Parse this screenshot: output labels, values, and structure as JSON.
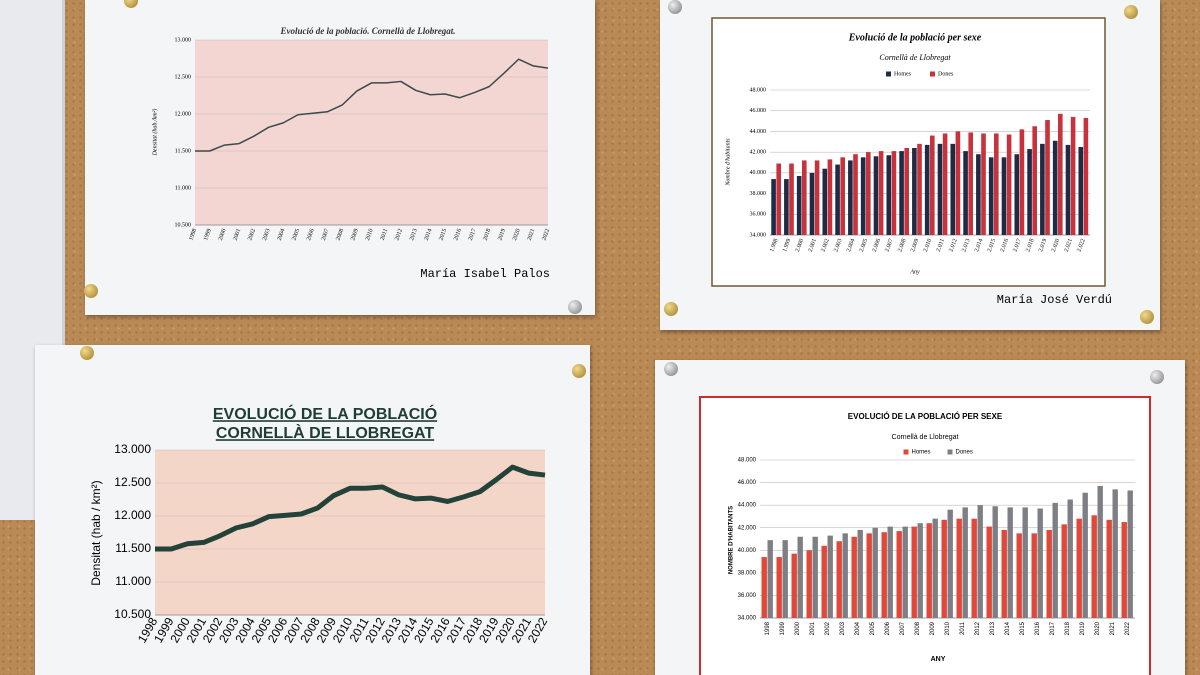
{
  "chart_data": [
    {
      "type": "line",
      "title": "Evolució de la població. Cornellà de Llobregat.",
      "y_label": "Densitat (hab./km²)",
      "caption": "María Isabel Palos",
      "categories": [
        "1998",
        "1999",
        "2000",
        "2001",
        "2002",
        "2003",
        "2004",
        "2005",
        "2006",
        "2007",
        "2008",
        "2009",
        "2010",
        "2011",
        "2012",
        "2013",
        "2014",
        "2015",
        "2016",
        "2017",
        "2018",
        "2019",
        "2020",
        "2021",
        "2022"
      ],
      "values": [
        11500,
        11500,
        11580,
        11600,
        11700,
        11820,
        11880,
        11990,
        12010,
        12030,
        12120,
        12310,
        12420,
        12420,
        12440,
        12320,
        12260,
        12270,
        12220,
        12290,
        12370,
        12550,
        12740,
        12650,
        12620
      ],
      "color": "#3d4a4a",
      "background": "#f3d5d1",
      "ylim": [
        10500,
        13000
      ],
      "yticks": [
        {
          "value": 10500,
          "label": "10.500"
        },
        {
          "value": 11000,
          "label": "11.000"
        },
        {
          "value": 11500,
          "label": "11.500"
        },
        {
          "value": 12000,
          "label": "12.000"
        },
        {
          "value": 12500,
          "label": "12.500"
        },
        {
          "value": 13000,
          "label": "13.000"
        }
      ],
      "grid": true
    },
    {
      "type": "bar",
      "title": "Evolució de la població per sexe",
      "subtitle": "Cornellà de Llobregat",
      "x_label": "Any",
      "y_label": "Nombre d'habitants",
      "caption": "María José Verdú",
      "categories": [
        "1.998",
        "1.999",
        "2.000",
        "2.001",
        "2.002",
        "2.003",
        "2.004",
        "2.005",
        "2.006",
        "2.007",
        "2.008",
        "2.009",
        "2.010",
        "2.011",
        "2.012",
        "2.013",
        "2.014",
        "2.015",
        "2.016",
        "2.017",
        "2.018",
        "2.019",
        "2.020",
        "2.021",
        "2.022"
      ],
      "series": [
        {
          "name": "Homes",
          "color": "#1f2a44",
          "values": [
            39400,
            39400,
            39700,
            40000,
            40400,
            40800,
            41200,
            41500,
            41600,
            41700,
            42100,
            42400,
            42700,
            42800,
            42800,
            42100,
            41800,
            41500,
            41500,
            41800,
            42300,
            42800,
            43100,
            42700,
            42500
          ]
        },
        {
          "name": "Dones",
          "color": "#c8323c",
          "values": [
            40900,
            40900,
            41200,
            41200,
            41300,
            41500,
            41800,
            42000,
            42100,
            42100,
            42400,
            42800,
            43600,
            43800,
            44000,
            43900,
            43800,
            43800,
            43700,
            44200,
            44500,
            45100,
            45700,
            45400,
            45300
          ]
        }
      ],
      "ylim": [
        34000,
        48000
      ],
      "yticks": [
        {
          "value": 34000,
          "label": "34.000"
        },
        {
          "value": 36000,
          "label": "36.000"
        },
        {
          "value": 38000,
          "label": "38.000"
        },
        {
          "value": 40000,
          "label": "40.000"
        },
        {
          "value": 42000,
          "label": "42.000"
        },
        {
          "value": 44000,
          "label": "44.000"
        },
        {
          "value": 46000,
          "label": "46.000"
        },
        {
          "value": 48000,
          "label": "48.000"
        }
      ],
      "grid": true,
      "legend": "top"
    },
    {
      "type": "line",
      "title": [
        "EVOLUCIÓ DE LA POBLACIÓ",
        "CORNELLÀ DE LLOBREGAT"
      ],
      "y_label": "Densitat (hab / km²)",
      "categories": [
        "1998",
        "1999",
        "2000",
        "2001",
        "2002",
        "2003",
        "2004",
        "2005",
        "2006",
        "2007",
        "2008",
        "2009",
        "2010",
        "2011",
        "2012",
        "2013",
        "2014",
        "2015",
        "2016",
        "2017",
        "2018",
        "2019",
        "2020",
        "2021",
        "2022"
      ],
      "values": [
        11500,
        11500,
        11580,
        11600,
        11700,
        11820,
        11880,
        11990,
        12010,
        12030,
        12120,
        12310,
        12420,
        12420,
        12440,
        12320,
        12260,
        12270,
        12220,
        12290,
        12370,
        12550,
        12740,
        12650,
        12620
      ],
      "color": "#22423a",
      "background": "#f4d6c8",
      "ylim": [
        10500,
        13000
      ],
      "yticks": [
        {
          "value": 10500,
          "label": "10.500"
        },
        {
          "value": 11000,
          "label": "11.000"
        },
        {
          "value": 11500,
          "label": "11.500"
        },
        {
          "value": 12000,
          "label": "12.000"
        },
        {
          "value": 12500,
          "label": "12.500"
        },
        {
          "value": 13000,
          "label": "13.000"
        }
      ],
      "grid": true
    },
    {
      "type": "bar",
      "title": "EVOLUCIÓ DE LA POBLACIÓ PER SEXE",
      "subtitle": "Cornellà de Llobregat",
      "x_label": "ANY",
      "y_label": "NOMBRE D'HABITANTS",
      "categories": [
        "1998",
        "1999",
        "2000",
        "2001",
        "2002",
        "2003",
        "2004",
        "2005",
        "2006",
        "2007",
        "2008",
        "2009",
        "2010",
        "2011",
        "2012",
        "2013",
        "2014",
        "2015",
        "2016",
        "2017",
        "2018",
        "2019",
        "2020",
        "2021",
        "2022"
      ],
      "series": [
        {
          "name": "Homes",
          "color": "#e0483a",
          "values": [
            39400,
            39400,
            39700,
            40000,
            40400,
            40800,
            41200,
            41500,
            41600,
            41700,
            42100,
            42400,
            42700,
            42800,
            42800,
            42100,
            41800,
            41500,
            41500,
            41800,
            42300,
            42800,
            43100,
            42700,
            42500
          ]
        },
        {
          "name": "Dones",
          "color": "#7d7f84",
          "values": [
            40900,
            40900,
            41200,
            41200,
            41300,
            41500,
            41800,
            42000,
            42100,
            42100,
            42400,
            42800,
            43600,
            43800,
            44000,
            43900,
            43800,
            43800,
            43700,
            44200,
            44500,
            45100,
            45700,
            45400,
            45300
          ]
        }
      ],
      "ylim": [
        34000,
        48000
      ],
      "yticks": [
        {
          "value": 34000,
          "label": "34.000"
        },
        {
          "value": 36000,
          "label": "36.000"
        },
        {
          "value": 38000,
          "label": "38.000"
        },
        {
          "value": 40000,
          "label": "40.000"
        },
        {
          "value": 42000,
          "label": "42.000"
        },
        {
          "value": 44000,
          "label": "44.000"
        },
        {
          "value": 46000,
          "label": "46.000"
        },
        {
          "value": 48000,
          "label": "48.000"
        }
      ],
      "grid": true,
      "legend": "top"
    }
  ]
}
